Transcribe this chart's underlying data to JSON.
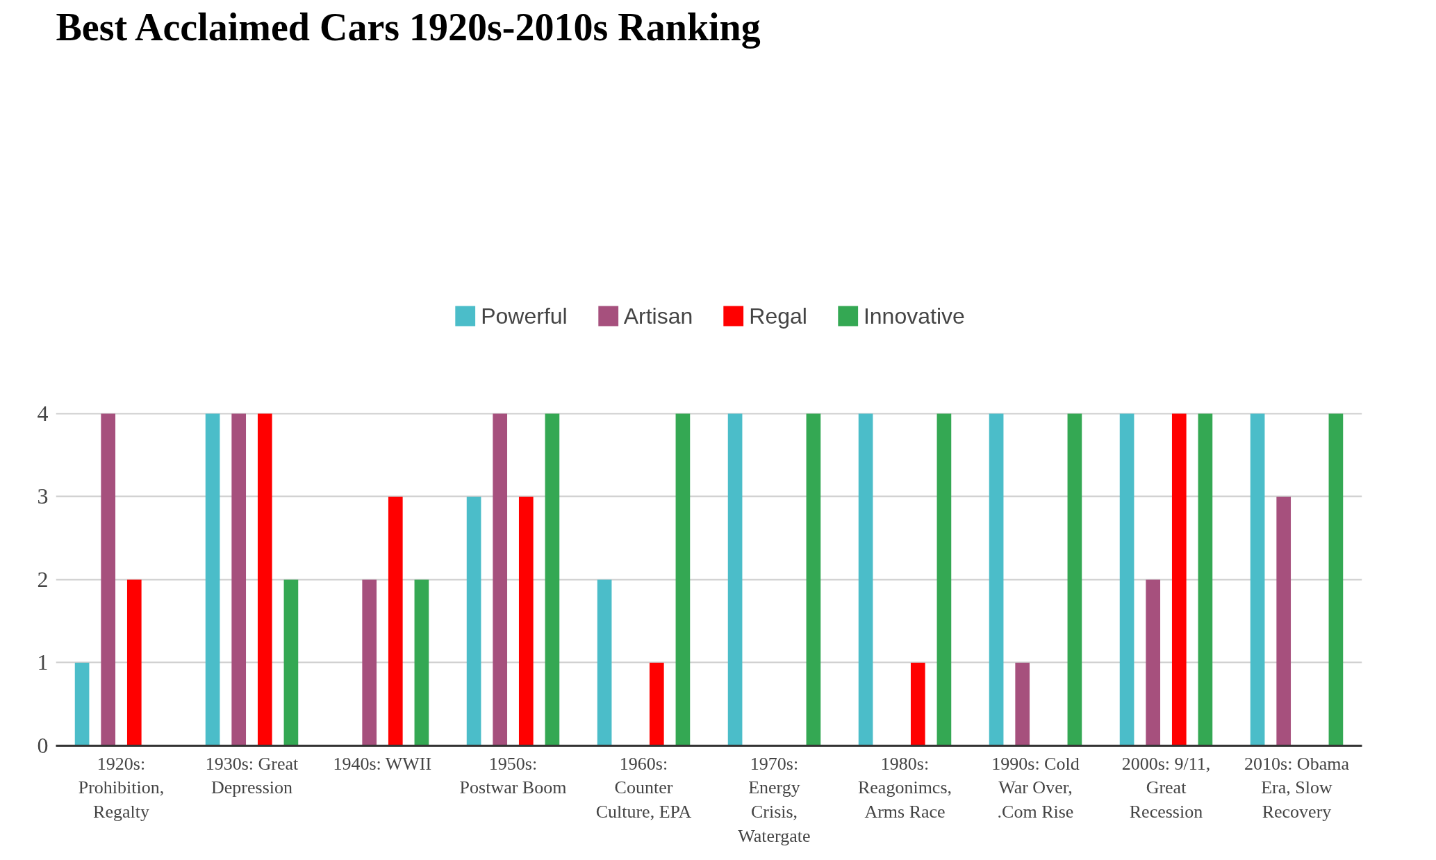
{
  "chart_data": {
    "type": "bar",
    "title": "Best Acclaimed Cars 1920s-2010s Ranking",
    "categories": [
      "1920s: Prohibition, Regalty",
      "1930s: Great Depression",
      "1940s: WWII",
      "1950s: Postwar Boom",
      "1960s: Counter Culture, EPA",
      "1970s: Energy Crisis, Watergate",
      "1980s: Reagonimcs, Arms Race",
      "1990s: Cold War Over, .Com Rise",
      "2000s: 9/11, Great Recession",
      "2010s: Obama Era, Slow Recovery"
    ],
    "series": [
      {
        "name": "Powerful",
        "color": "#4bbdc9",
        "values": [
          1,
          4,
          0,
          3,
          2,
          4,
          4,
          4,
          4,
          4
        ]
      },
      {
        "name": "Artisan",
        "color": "#a6507d",
        "values": [
          4,
          4,
          2,
          4,
          0,
          0,
          0,
          1,
          2,
          3
        ]
      },
      {
        "name": "Regal",
        "color": "#ff0000",
        "values": [
          2,
          4,
          3,
          3,
          1,
          0,
          1,
          0,
          4,
          0
        ]
      },
      {
        "name": "Innovative",
        "color": "#34a853",
        "values": [
          0,
          2,
          2,
          4,
          4,
          4,
          4,
          4,
          4,
          4
        ]
      }
    ],
    "ylim": [
      0,
      4
    ],
    "yticks": [
      0,
      1,
      2,
      3,
      4
    ],
    "grid": "y",
    "legend": "top"
  }
}
